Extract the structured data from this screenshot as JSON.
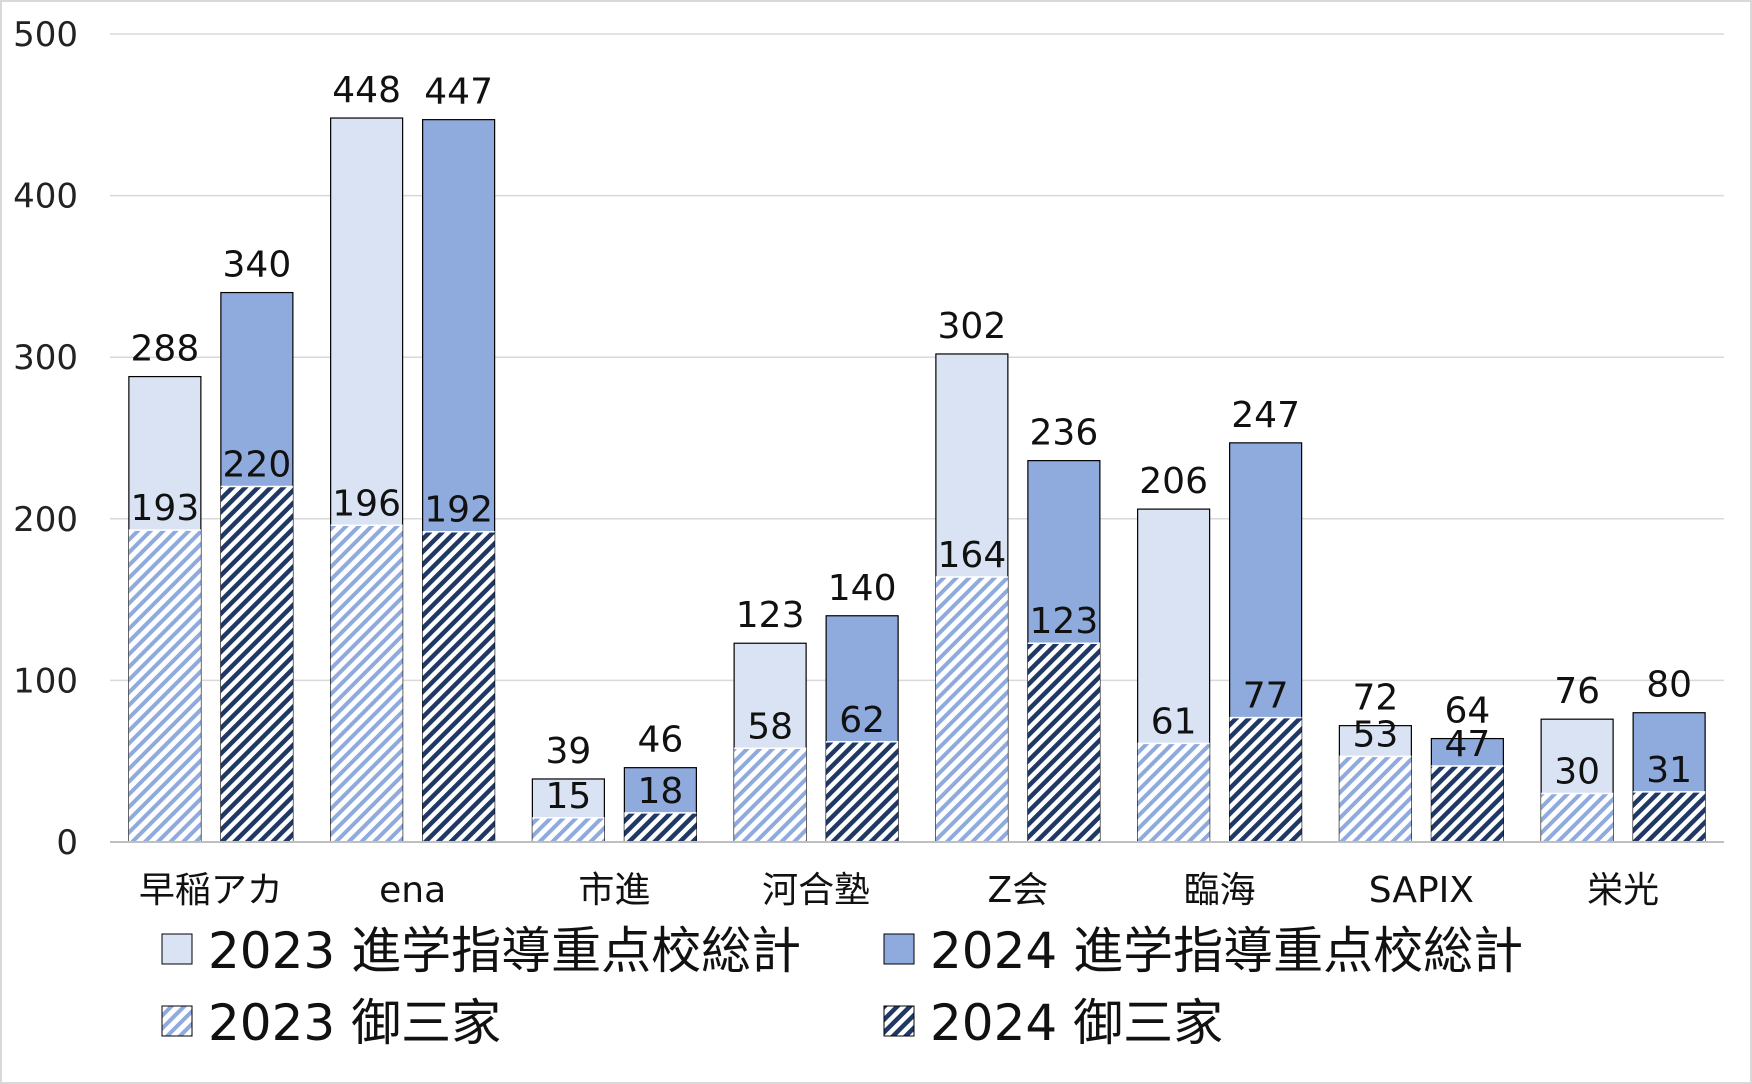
{
  "chart_data": {
    "type": "bar",
    "subtype": "grouped-overlapping",
    "title": "",
    "xlabel": "",
    "ylabel": "",
    "ylim": [
      0,
      500
    ],
    "yticks": [
      0,
      100,
      200,
      300,
      400,
      500
    ],
    "grid": true,
    "categories": [
      "早稲アカ",
      "ena",
      "市進",
      "河合塾",
      "Z会",
      "臨海",
      "SAPIX",
      "栄光"
    ],
    "series": [
      {
        "name": "2023 進学指導重点校総計",
        "year": "2023",
        "kind": "total",
        "color": "#dae3f3",
        "pattern": "solid",
        "values": [
          288,
          448,
          39,
          123,
          302,
          206,
          72,
          76
        ]
      },
      {
        "name": "2024 進学指導重点校総計",
        "year": "2024",
        "kind": "total",
        "color": "#8faadc",
        "pattern": "solid",
        "values": [
          340,
          447,
          46,
          140,
          236,
          247,
          64,
          80
        ]
      },
      {
        "name": "2023 御三家",
        "year": "2023",
        "kind": "gosanke",
        "color": "#8faadc",
        "pattern": "hatch-light",
        "values": [
          193,
          196,
          15,
          58,
          164,
          61,
          53,
          30
        ]
      },
      {
        "name": "2024 御三家",
        "year": "2024",
        "kind": "gosanke",
        "color": "#2f5597",
        "pattern": "hatch-dark",
        "values": [
          220,
          192,
          18,
          62,
          123,
          77,
          47,
          31
        ]
      }
    ],
    "legend": {
      "position": "bottom",
      "entries": [
        {
          "label": "2023 進学指導重点校総計"
        },
        {
          "label": "2024 進学指導重点校総計"
        },
        {
          "label": "2023 御三家"
        },
        {
          "label": "2024 御三家"
        }
      ]
    }
  }
}
